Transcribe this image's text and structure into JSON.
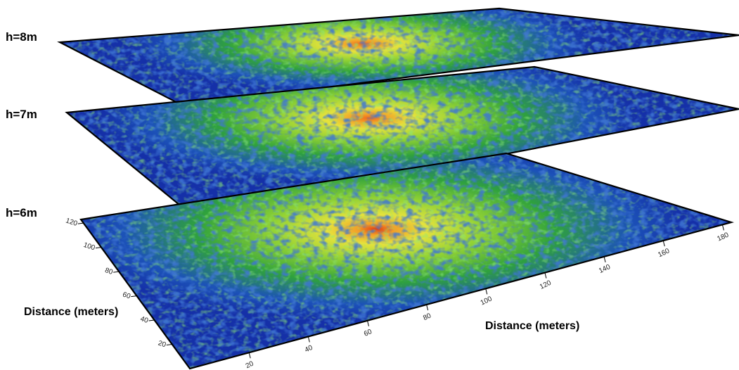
{
  "layers": [
    {
      "label": "h=8m"
    },
    {
      "label": "h=7m"
    },
    {
      "label": "h=6m"
    }
  ],
  "axes": {
    "depth": {
      "label": "Distance (meters)",
      "ticks": [
        20,
        40,
        60,
        80,
        100,
        120
      ]
    },
    "width": {
      "label": "Distance (meters)",
      "ticks": [
        20,
        40,
        60,
        80,
        100,
        120,
        140,
        160,
        180
      ]
    }
  }
}
